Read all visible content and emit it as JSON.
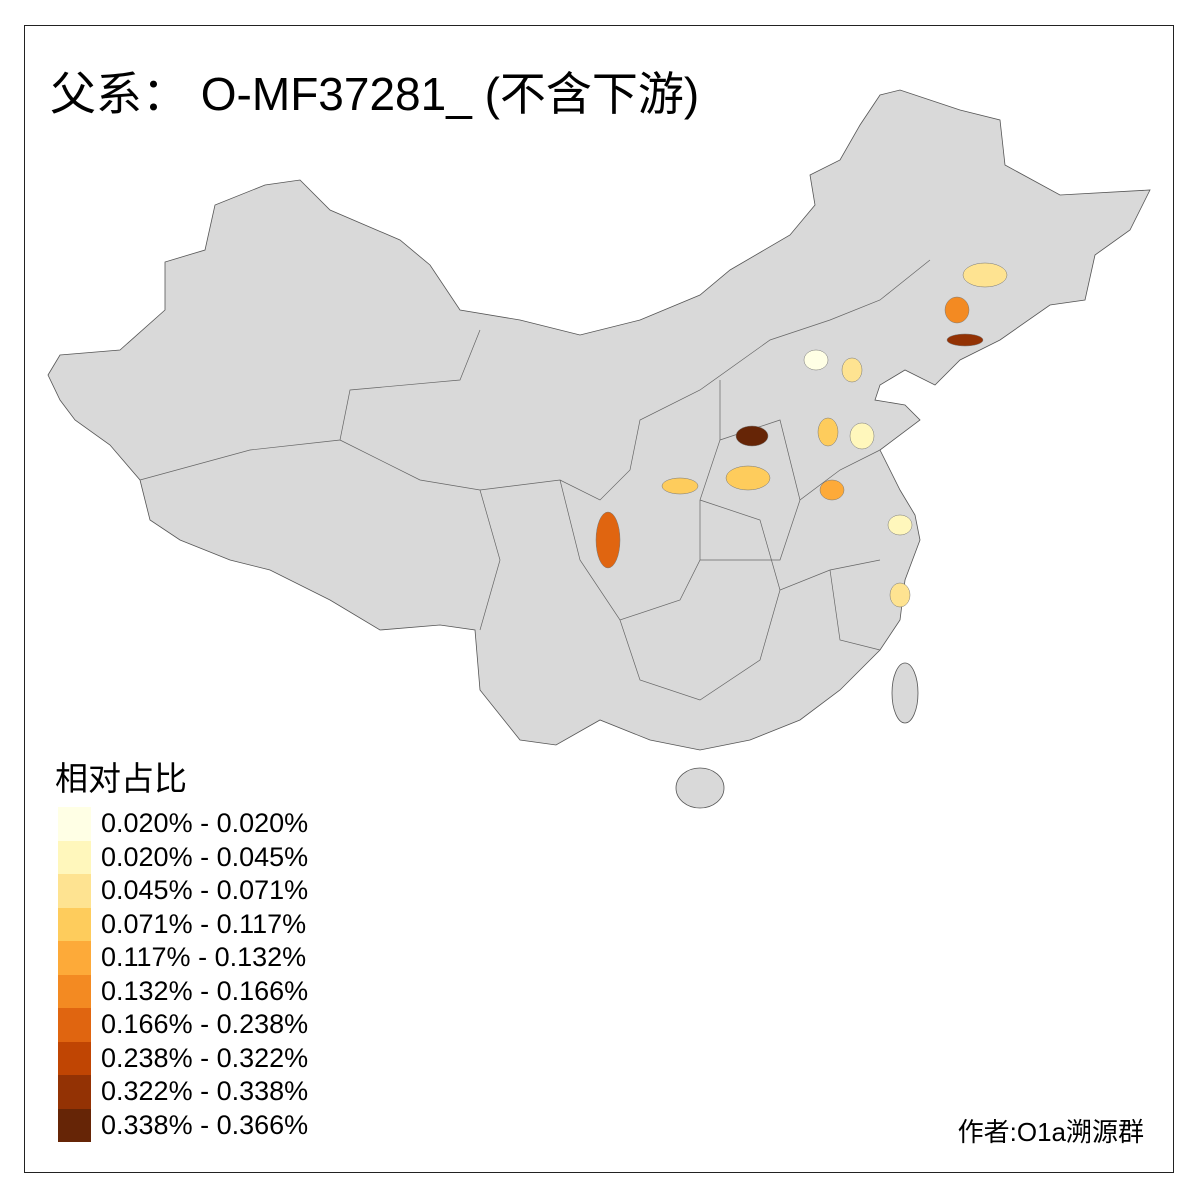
{
  "title": "父系： O-MF37281_ (不含下游)",
  "legend": {
    "title": "相对占比",
    "items": [
      {
        "label": "0.020% - 0.020%",
        "color": "#FFFFE5"
      },
      {
        "label": "0.020% - 0.045%",
        "color": "#FFF7BC"
      },
      {
        "label": "0.045% - 0.071%",
        "color": "#FEE391"
      },
      {
        "label": "0.071% - 0.117%",
        "color": "#FECC5C"
      },
      {
        "label": "0.117% - 0.132%",
        "color": "#FDAA39"
      },
      {
        "label": "0.132% - 0.166%",
        "color": "#F38A22"
      },
      {
        "label": "0.166% - 0.238%",
        "color": "#E06510"
      },
      {
        "label": "0.238% - 0.322%",
        "color": "#C04503"
      },
      {
        "label": "0.322% - 0.338%",
        "color": "#933204"
      },
      {
        "label": "0.338% - 0.366%",
        "color": "#662506"
      }
    ]
  },
  "colors": {
    "base_fill": "#D9D9D9",
    "border": "#555555"
  },
  "author": "作者:O1a溯源群"
}
